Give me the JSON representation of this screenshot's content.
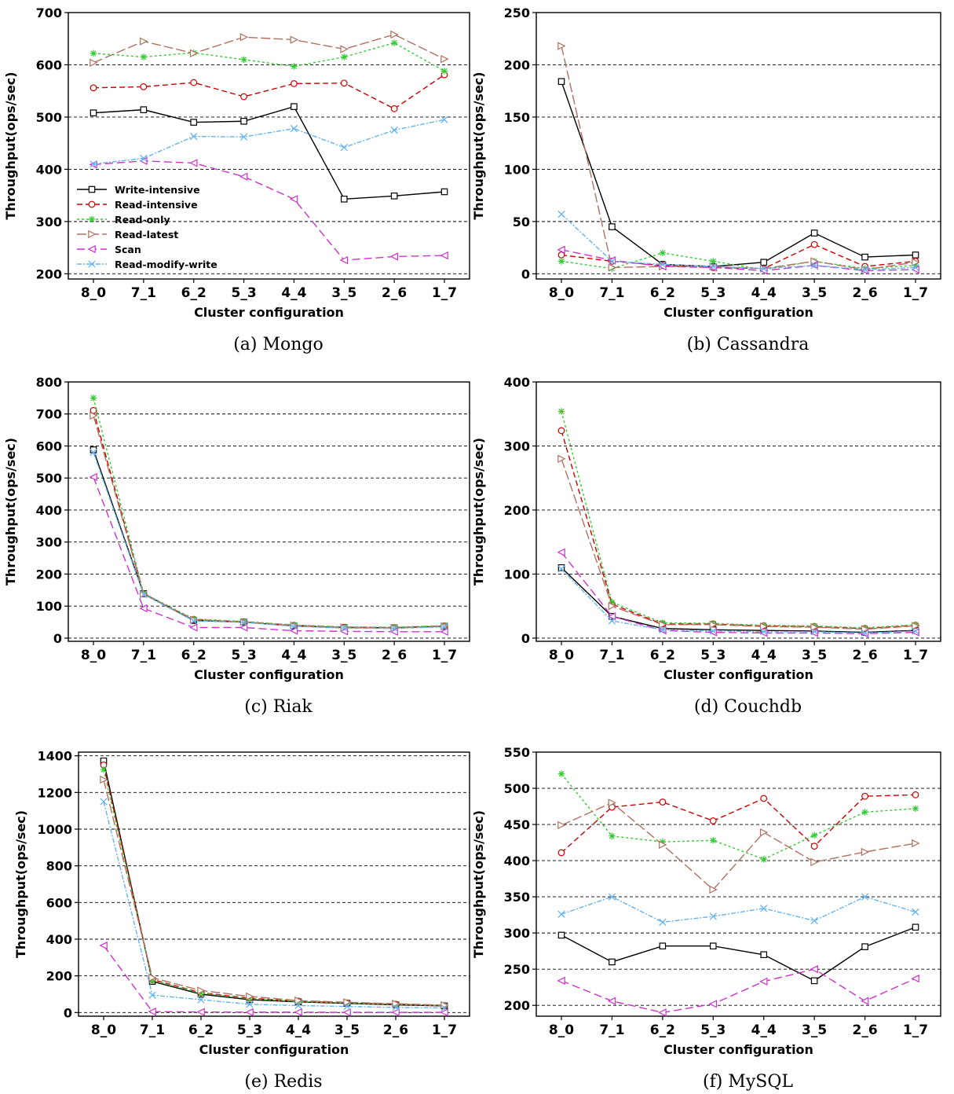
{
  "figure": {
    "legend": [
      {
        "name": "Write-intensive",
        "color": "#000000",
        "dash": "",
        "marker": "square"
      },
      {
        "name": "Read-intensive",
        "color": "#cc0000",
        "dash": "7,4",
        "marker": "circle"
      },
      {
        "name": "Read-only",
        "color": "#33cc33",
        "dash": "3,3",
        "marker": "star"
      },
      {
        "name": "Read-latest",
        "color": "#b07060",
        "dash": "12,4",
        "marker": "triangle-right"
      },
      {
        "name": "Scan",
        "color": "#cc33cc",
        "dash": "10,5",
        "marker": "triangle-left"
      },
      {
        "name": "Read-modify-write",
        "color": "#66b3ee",
        "dash": "6,2,2,2",
        "marker": "cross"
      }
    ]
  },
  "chart_data": [
    {
      "type": "line",
      "caption": "(a) Mongo",
      "xlabel": "Cluster configuration",
      "ylabel": "Throughput(ops/sec)",
      "categories": [
        "8_0",
        "7_1",
        "6_2",
        "5_3",
        "4_4",
        "3_5",
        "2_6",
        "1_7"
      ],
      "ylim": [
        190,
        700
      ],
      "yticks": [
        200,
        300,
        400,
        500,
        600,
        700
      ],
      "grid": true,
      "legend_position": "lower-left",
      "series": [
        {
          "name": "Write-intensive",
          "values": [
            508,
            514,
            490,
            492,
            520,
            343,
            349,
            357
          ]
        },
        {
          "name": "Read-intensive",
          "values": [
            556,
            558,
            566,
            539,
            564,
            565,
            516,
            581
          ]
        },
        {
          "name": "Read-only",
          "values": [
            622,
            615,
            623,
            610,
            597,
            615,
            642,
            588
          ]
        },
        {
          "name": "Read-latest",
          "values": [
            604,
            645,
            622,
            653,
            648,
            630,
            658,
            611
          ]
        },
        {
          "name": "Scan",
          "values": [
            409,
            416,
            412,
            386,
            343,
            226,
            233,
            235
          ]
        },
        {
          "name": "Read-modify-write",
          "values": [
            410,
            421,
            463,
            462,
            478,
            442,
            475,
            495
          ]
        }
      ]
    },
    {
      "type": "line",
      "caption": "(b) Cassandra",
      "xlabel": "Cluster configuration",
      "ylabel": "Throughput(ops/sec)",
      "categories": [
        "8_0",
        "7_1",
        "6_2",
        "5_3",
        "4_4",
        "3_5",
        "2_6",
        "1_7"
      ],
      "ylim": [
        -5,
        250
      ],
      "yticks": [
        0,
        50,
        100,
        150,
        200,
        250
      ],
      "grid": true,
      "series": [
        {
          "name": "Write-intensive",
          "values": [
            184,
            45,
            9,
            7,
            11,
            39,
            16,
            18
          ]
        },
        {
          "name": "Read-intensive",
          "values": [
            18,
            12,
            8,
            6,
            5,
            28,
            7,
            12
          ]
        },
        {
          "name": "Read-only",
          "values": [
            12,
            5,
            20,
            12,
            4,
            12,
            5,
            8
          ]
        },
        {
          "name": "Read-latest",
          "values": [
            218,
            6,
            7,
            7,
            5,
            12,
            4,
            11
          ]
        },
        {
          "name": "Scan",
          "values": [
            23,
            13,
            7,
            6,
            3,
            8,
            3,
            4
          ]
        },
        {
          "name": "Read-modify-write",
          "values": [
            57,
            12,
            9,
            7,
            5,
            8,
            4,
            6
          ]
        }
      ]
    },
    {
      "type": "line",
      "caption": "(c) Riak",
      "xlabel": "Cluster configuration",
      "ylabel": "Throughput(ops/sec)",
      "categories": [
        "8_0",
        "7_1",
        "6_2",
        "5_3",
        "4_4",
        "3_5",
        "2_6",
        "1_7"
      ],
      "ylim": [
        -10,
        800
      ],
      "yticks": [
        0,
        100,
        200,
        300,
        400,
        500,
        600,
        700,
        800
      ],
      "grid": true,
      "series": [
        {
          "name": "Write-intensive",
          "values": [
            588,
            139,
            55,
            50,
            38,
            33,
            32,
            37
          ]
        },
        {
          "name": "Read-intensive",
          "values": [
            711,
            138,
            58,
            51,
            40,
            34,
            33,
            38
          ]
        },
        {
          "name": "Read-only",
          "values": [
            750,
            140,
            60,
            52,
            41,
            35,
            34,
            39
          ]
        },
        {
          "name": "Read-latest",
          "values": [
            695,
            137,
            57,
            50,
            39,
            33,
            32,
            37
          ]
        },
        {
          "name": "Scan",
          "values": [
            503,
            93,
            33,
            33,
            23,
            21,
            20,
            20
          ]
        },
        {
          "name": "Read-modify-write",
          "values": [
            580,
            136,
            54,
            49,
            37,
            31,
            30,
            35
          ]
        }
      ]
    },
    {
      "type": "line",
      "caption": "(d) Couchdb",
      "xlabel": "Cluster configuration",
      "ylabel": "Throughput(ops/sec)",
      "categories": [
        "8_0",
        "7_1",
        "6_2",
        "5_3",
        "4_4",
        "3_5",
        "2_6",
        "1_7"
      ],
      "ylim": [
        -5,
        400
      ],
      "yticks": [
        0,
        100,
        200,
        300,
        400
      ],
      "grid": true,
      "series": [
        {
          "name": "Write-intensive",
          "values": [
            110,
            34,
            15,
            13,
            12,
            11,
            9,
            12
          ]
        },
        {
          "name": "Read-intensive",
          "values": [
            324,
            53,
            22,
            22,
            19,
            18,
            15,
            20
          ]
        },
        {
          "name": "Read-only",
          "values": [
            354,
            56,
            24,
            23,
            20,
            19,
            16,
            21
          ]
        },
        {
          "name": "Read-latest",
          "values": [
            280,
            50,
            21,
            21,
            18,
            17,
            14,
            19
          ]
        },
        {
          "name": "Scan",
          "values": [
            134,
            34,
            12,
            9,
            8,
            8,
            7,
            9
          ]
        },
        {
          "name": "Read-modify-write",
          "values": [
            108,
            27,
            13,
            11,
            10,
            10,
            8,
            11
          ]
        }
      ]
    },
    {
      "type": "line",
      "caption": "(e) Redis",
      "xlabel": "Cluster configuration",
      "ylabel": "Throughput(ops/sec)",
      "categories": [
        "8_0",
        "7_1",
        "6_2",
        "5_3",
        "4_4",
        "3_5",
        "2_6",
        "1_7"
      ],
      "ylim": [
        -20,
        1420
      ],
      "yticks": [
        0,
        200,
        400,
        600,
        800,
        1000,
        1200,
        1400
      ],
      "grid": true,
      "series": [
        {
          "name": "Write-intensive",
          "values": [
            1372,
            170,
            100,
            70,
            58,
            50,
            42,
            36
          ]
        },
        {
          "name": "Read-intensive",
          "values": [
            1350,
            180,
            108,
            78,
            62,
            53,
            45,
            38
          ]
        },
        {
          "name": "Read-only",
          "values": [
            1325,
            175,
            105,
            75,
            60,
            52,
            44,
            37
          ]
        },
        {
          "name": "Read-latest",
          "values": [
            1270,
            190,
            120,
            88,
            65,
            56,
            48,
            40
          ]
        },
        {
          "name": "Scan",
          "values": [
            365,
            5,
            3,
            2,
            2,
            1,
            1,
            1
          ]
        },
        {
          "name": "Read-modify-write",
          "values": [
            1150,
            95,
            70,
            45,
            38,
            33,
            28,
            25
          ]
        }
      ]
    },
    {
      "type": "line",
      "caption": "(f) MySQL",
      "xlabel": "Cluster configuration",
      "ylabel": "Throughput(ops/sec)",
      "categories": [
        "8_0",
        "7_1",
        "6_2",
        "5_3",
        "4_4",
        "3_5",
        "2_6",
        "1_7"
      ],
      "ylim": [
        185,
        550
      ],
      "yticks": [
        200,
        250,
        300,
        350,
        400,
        450,
        500,
        550
      ],
      "grid": true,
      "series": [
        {
          "name": "Write-intensive",
          "values": [
            297,
            260,
            282,
            282,
            270,
            234,
            281,
            308
          ]
        },
        {
          "name": "Read-intensive",
          "values": [
            411,
            474,
            481,
            455,
            486,
            420,
            489,
            491
          ]
        },
        {
          "name": "Read-only",
          "values": [
            520,
            434,
            426,
            428,
            402,
            435,
            467,
            472
          ]
        },
        {
          "name": "Read-latest",
          "values": [
            449,
            480,
            422,
            360,
            439,
            398,
            412,
            424
          ]
        },
        {
          "name": "Scan",
          "values": [
            234,
            206,
            190,
            202,
            233,
            250,
            206,
            237
          ]
        },
        {
          "name": "Read-modify-write",
          "values": [
            326,
            350,
            315,
            323,
            334,
            317,
            350,
            329
          ]
        }
      ]
    }
  ]
}
